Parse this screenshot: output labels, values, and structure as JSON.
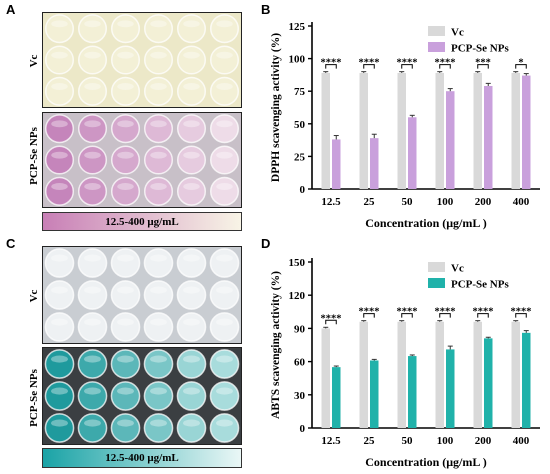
{
  "panels": {
    "a": "A",
    "b": "B",
    "c": "C",
    "d": "D"
  },
  "plate_a": {
    "label_top": "Vc",
    "label_bottom": "PCP-Se NPs",
    "gradient_label": "12.5-400 μg/mL",
    "colors": {
      "top_bg": "#ece8c8",
      "bottom_bg": "#c8c0c8",
      "vc_well": "#f3f0d6",
      "np_strong": "#c585bb",
      "np_weak": "#eedce8",
      "grad_start": "#c87fb6",
      "grad_end": "#f8f4e6"
    }
  },
  "plate_c": {
    "label_top": "Vc",
    "label_bottom": "PCP-Se NPs",
    "gradient_label": "12.5-400 μg/mL",
    "colors": {
      "top_bg": "#c9cdd2",
      "bottom_bg": "#3b3f42",
      "vc_well": "#eef1f3",
      "np_strong": "#1f9a9d",
      "np_weak": "#a8dcdc",
      "grad_start": "#1aa3a6",
      "grad_end": "#eaf7f6"
    }
  },
  "chart_data": [
    {
      "type": "bar",
      "ylabel": "DPPH scavenging activity (%)",
      "xlabel": "Concentration (μg/mL )",
      "categories": [
        "12.5",
        "25",
        "50",
        "100",
        "200",
        "400"
      ],
      "ylim": [
        0,
        125
      ],
      "yticks": [
        0,
        25,
        50,
        75,
        100,
        125
      ],
      "legend_position": "top-right",
      "series": [
        {
          "name": "Vc",
          "color": "#d9d9d9",
          "values": [
            89,
            89,
            89,
            89,
            89,
            89
          ],
          "errors": [
            1,
            1,
            1,
            1,
            1,
            1
          ]
        },
        {
          "name": "PCP-Se NPs",
          "color": "#c9a0dc",
          "values": [
            38,
            39,
            55,
            75,
            79,
            87
          ],
          "errors": [
            3,
            3,
            1.5,
            2,
            2,
            1.5
          ]
        }
      ],
      "significance": [
        "****",
        "****",
        "****",
        "****",
        "***",
        "*"
      ]
    },
    {
      "type": "bar",
      "ylabel": "ABTS scavenging activity (%)",
      "xlabel": "Concentration (μg/mL )",
      "categories": [
        "12.5",
        "25",
        "50",
        "100",
        "200",
        "400"
      ],
      "ylim": [
        0,
        150
      ],
      "yticks": [
        0,
        30,
        60,
        90,
        120,
        150
      ],
      "legend_position": "top-right",
      "series": [
        {
          "name": "Vc",
          "color": "#d9d9d9",
          "values": [
            90,
            96,
            96,
            96,
            96,
            96
          ],
          "errors": [
            1,
            1,
            1,
            1,
            1,
            1
          ]
        },
        {
          "name": "PCP-Se NPs",
          "color": "#20b2aa",
          "values": [
            55,
            61,
            65,
            71,
            81,
            86
          ],
          "errors": [
            1,
            1,
            1,
            3,
            1,
            2
          ]
        }
      ],
      "significance": [
        "****",
        "****",
        "****",
        "****",
        "****",
        "****"
      ]
    }
  ]
}
